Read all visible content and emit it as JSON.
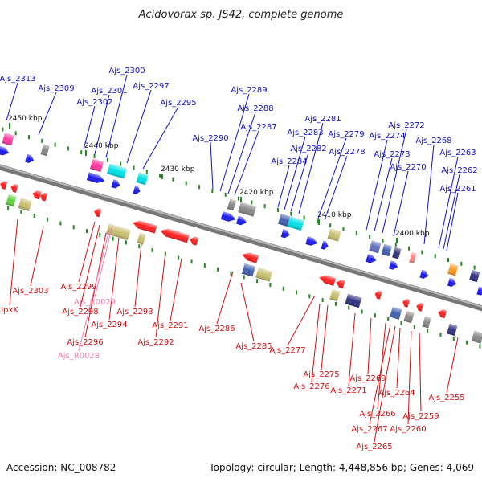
{
  "title": "Acidovorax sp. JS42, complete genome",
  "footer": {
    "accession": "Accession: NC_008782",
    "summary": "Topology: circular; Length: 4,448,856 bp; Genes: 4,069"
  },
  "colors": {
    "forward_label": "#1010c0",
    "reverse_label": "#d01010",
    "rna_label": "#f080b0",
    "backbone": "#777777",
    "tick": "#228822"
  },
  "ticks": [
    "2450 kbp",
    "2440 kbp",
    "2430 kbp",
    "2420 kbp",
    "2410 kbp",
    "2400 kbp"
  ],
  "forward_labels": [
    "Ajs_2313",
    "Ajs_2309",
    "Ajs_2302",
    "Ajs_2301",
    "Ajs_2300",
    "Ajs_2297",
    "Ajs_2295",
    "Ajs_2290",
    "Ajs_2289",
    "Ajs_2288",
    "Ajs_2287",
    "Ajs_2284",
    "Ajs_2283",
    "Ajs_2282",
    "Ajs_2281",
    "Ajs_2279",
    "Ajs_2278",
    "Ajs_2274",
    "Ajs_2273",
    "Ajs_2272",
    "Ajs_2270",
    "Ajs_2268",
    "Ajs_2263",
    "Ajs_2262",
    "Ajs_2261"
  ],
  "reverse_labels": [
    "Ajs_2303",
    "IpxK",
    "Ajs_2299",
    "Ajs_2298",
    "Ajs_2296",
    "Ajs_2294",
    "Ajs_2293",
    "Ajs_2292",
    "Ajs_2291",
    "Ajs_2286",
    "Ajs_2285",
    "Ajs_2277",
    "Ajs_2276",
    "Ajs_2275",
    "Ajs_2271",
    "Ajs_2269",
    "Ajs_2266",
    "Ajs_2267",
    "Ajs_2265",
    "Ajs_2264",
    "Ajs_2260",
    "Ajs_2259",
    "Ajs_2255"
  ],
  "rna_labels": [
    "Ajs_R0029",
    "Ajs_R0028"
  ]
}
